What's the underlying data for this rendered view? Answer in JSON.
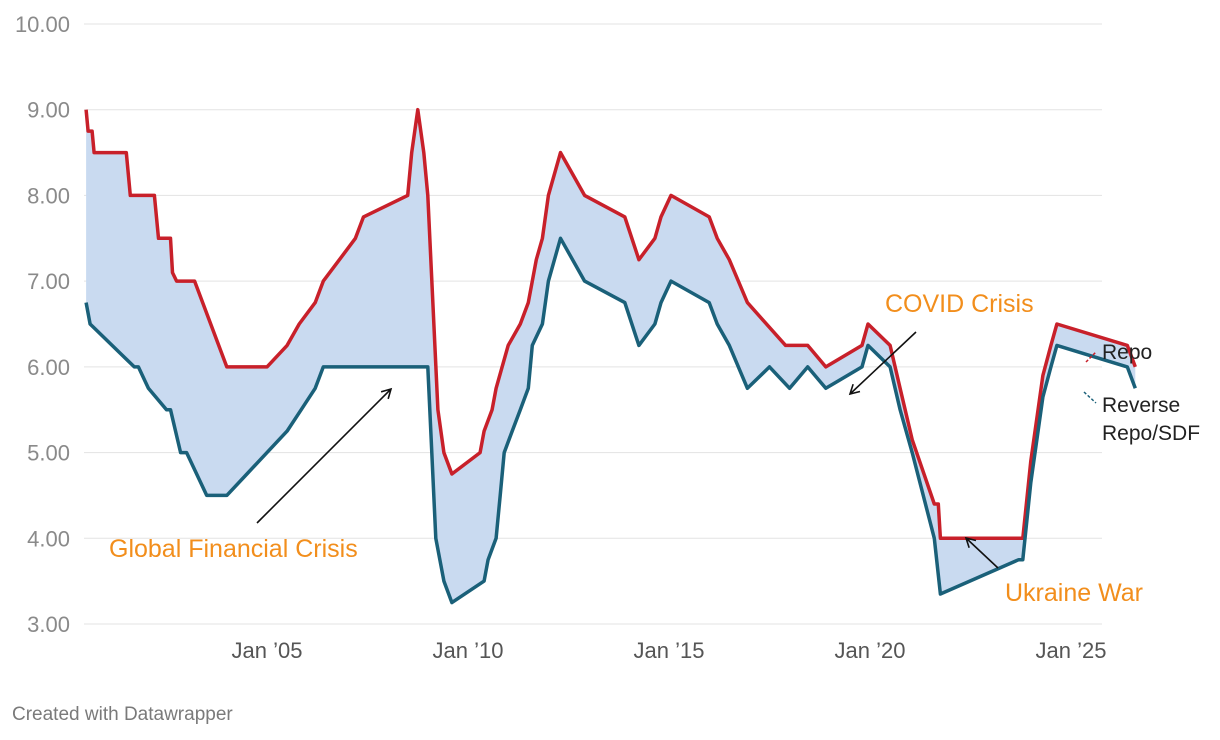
{
  "chart_data": {
    "type": "area",
    "y_ticks": [
      "3.00",
      "4.00",
      "5.00",
      "6.00",
      "7.00",
      "8.00",
      "9.00",
      "10.00"
    ],
    "ylim": [
      3,
      10
    ],
    "x_ticks": [
      {
        "label": "Jan ’05",
        "value": 2005
      },
      {
        "label": "Jan ’10",
        "value": 2010
      },
      {
        "label": "Jan ’15",
        "value": 2015
      },
      {
        "label": "Jan ’20",
        "value": 2020
      },
      {
        "label": "Jan ’25",
        "value": 2025
      }
    ],
    "xlim": [
      2000,
      2025
    ],
    "grid": true,
    "colors": {
      "repo": "#c8202a",
      "reverse": "#1a6079",
      "fill": "#c9daf0",
      "annotation": "#f28e1c"
    },
    "series": [
      {
        "name": "Repo",
        "points": [
          [
            2000.5,
            9.0
          ],
          [
            2000.55,
            8.75
          ],
          [
            2000.65,
            8.75
          ],
          [
            2000.7,
            8.5
          ],
          [
            2001.5,
            8.5
          ],
          [
            2001.6,
            8.0
          ],
          [
            2002.2,
            8.0
          ],
          [
            2002.3,
            7.5
          ],
          [
            2002.6,
            7.5
          ],
          [
            2002.65,
            7.1
          ],
          [
            2002.75,
            7.0
          ],
          [
            2003.2,
            7.0
          ],
          [
            2003.6,
            6.5
          ],
          [
            2004.0,
            6.0
          ],
          [
            2005.0,
            6.0
          ],
          [
            2005.5,
            6.25
          ],
          [
            2005.8,
            6.5
          ],
          [
            2006.2,
            6.75
          ],
          [
            2006.4,
            7.0
          ],
          [
            2006.8,
            7.25
          ],
          [
            2007.2,
            7.5
          ],
          [
            2007.4,
            7.75
          ],
          [
            2008.5,
            8.0
          ],
          [
            2008.6,
            8.5
          ],
          [
            2008.75,
            9.0
          ],
          [
            2008.9,
            8.5
          ],
          [
            2009.0,
            8.0
          ],
          [
            2009.25,
            5.5
          ],
          [
            2009.4,
            5.0
          ],
          [
            2009.6,
            4.75
          ],
          [
            2010.3,
            5.0
          ],
          [
            2010.4,
            5.25
          ],
          [
            2010.6,
            5.5
          ],
          [
            2010.7,
            5.75
          ],
          [
            2011.0,
            6.25
          ],
          [
            2011.3,
            6.5
          ],
          [
            2011.5,
            6.75
          ],
          [
            2011.7,
            7.25
          ],
          [
            2011.85,
            7.5
          ],
          [
            2012.0,
            8.0
          ],
          [
            2012.3,
            8.5
          ],
          [
            2012.9,
            8.0
          ],
          [
            2013.9,
            7.75
          ],
          [
            2014.25,
            7.25
          ],
          [
            2014.65,
            7.5
          ],
          [
            2014.8,
            7.75
          ],
          [
            2015.05,
            8.0
          ],
          [
            2016.0,
            7.75
          ],
          [
            2016.2,
            7.5
          ],
          [
            2016.5,
            7.25
          ],
          [
            2016.95,
            6.75
          ],
          [
            2017.9,
            6.25
          ],
          [
            2018.45,
            6.25
          ],
          [
            2018.9,
            6.0
          ],
          [
            2019.8,
            6.25
          ],
          [
            2019.95,
            6.5
          ],
          [
            2020.5,
            6.25
          ],
          [
            2020.75,
            5.75
          ],
          [
            2021.05,
            5.15
          ],
          [
            2021.6,
            4.4
          ],
          [
            2021.7,
            4.4
          ],
          [
            2021.75,
            4.0
          ],
          [
            2023.8,
            4.0
          ],
          [
            2024.0,
            4.9
          ],
          [
            2024.3,
            5.9
          ],
          [
            2024.5,
            6.25
          ],
          [
            2024.65,
            6.5
          ],
          [
            2026.4,
            6.25
          ],
          [
            2026.6,
            6.0
          ]
        ]
      },
      {
        "name": "Reverse Repo/SDF",
        "points": [
          [
            2000.5,
            6.75
          ],
          [
            2000.6,
            6.5
          ],
          [
            2001.7,
            6.0
          ],
          [
            2001.8,
            6.0
          ],
          [
            2002.05,
            5.75
          ],
          [
            2002.5,
            5.5
          ],
          [
            2002.6,
            5.5
          ],
          [
            2002.85,
            5.0
          ],
          [
            2003.0,
            5.0
          ],
          [
            2003.5,
            4.5
          ],
          [
            2004.0,
            4.5
          ],
          [
            2004.5,
            4.75
          ],
          [
            2005.5,
            5.25
          ],
          [
            2005.85,
            5.5
          ],
          [
            2006.2,
            5.75
          ],
          [
            2006.4,
            6.0
          ],
          [
            2009.0,
            6.0
          ],
          [
            2009.2,
            4.0
          ],
          [
            2009.4,
            3.5
          ],
          [
            2009.6,
            3.25
          ],
          [
            2010.4,
            3.5
          ],
          [
            2010.5,
            3.75
          ],
          [
            2010.7,
            4.0
          ],
          [
            2010.8,
            4.5
          ],
          [
            2010.9,
            5.0
          ],
          [
            2011.1,
            5.25
          ],
          [
            2011.3,
            5.5
          ],
          [
            2011.5,
            5.75
          ],
          [
            2011.6,
            6.25
          ],
          [
            2011.85,
            6.5
          ],
          [
            2012.0,
            7.0
          ],
          [
            2012.3,
            7.5
          ],
          [
            2012.9,
            7.0
          ],
          [
            2013.9,
            6.75
          ],
          [
            2014.25,
            6.25
          ],
          [
            2014.65,
            6.5
          ],
          [
            2014.8,
            6.75
          ],
          [
            2015.05,
            7.0
          ],
          [
            2016.0,
            6.75
          ],
          [
            2016.2,
            6.5
          ],
          [
            2016.5,
            6.25
          ],
          [
            2016.95,
            5.75
          ],
          [
            2017.5,
            6.0
          ],
          [
            2018.0,
            5.75
          ],
          [
            2018.45,
            6.0
          ],
          [
            2018.9,
            5.75
          ],
          [
            2019.8,
            6.0
          ],
          [
            2019.95,
            6.25
          ],
          [
            2020.5,
            6.0
          ],
          [
            2020.75,
            5.5
          ],
          [
            2021.05,
            5.0
          ],
          [
            2021.6,
            4.0
          ],
          [
            2021.75,
            3.35
          ],
          [
            2023.7,
            3.75
          ],
          [
            2023.8,
            3.75
          ],
          [
            2024.0,
            4.65
          ],
          [
            2024.3,
            5.65
          ],
          [
            2024.5,
            6.0
          ],
          [
            2024.65,
            6.25
          ],
          [
            2026.4,
            6.0
          ],
          [
            2026.6,
            5.75
          ]
        ]
      }
    ],
    "end_labels": {
      "repo": "Repo",
      "reverse_line1": "Reverse",
      "reverse_line2": "Repo/SDF"
    },
    "annotations": [
      {
        "text": "Global Financial Crisis"
      },
      {
        "text": "COVID Crisis"
      },
      {
        "text": "Ukraine War"
      }
    ]
  },
  "footer": "Created with Datawrapper"
}
